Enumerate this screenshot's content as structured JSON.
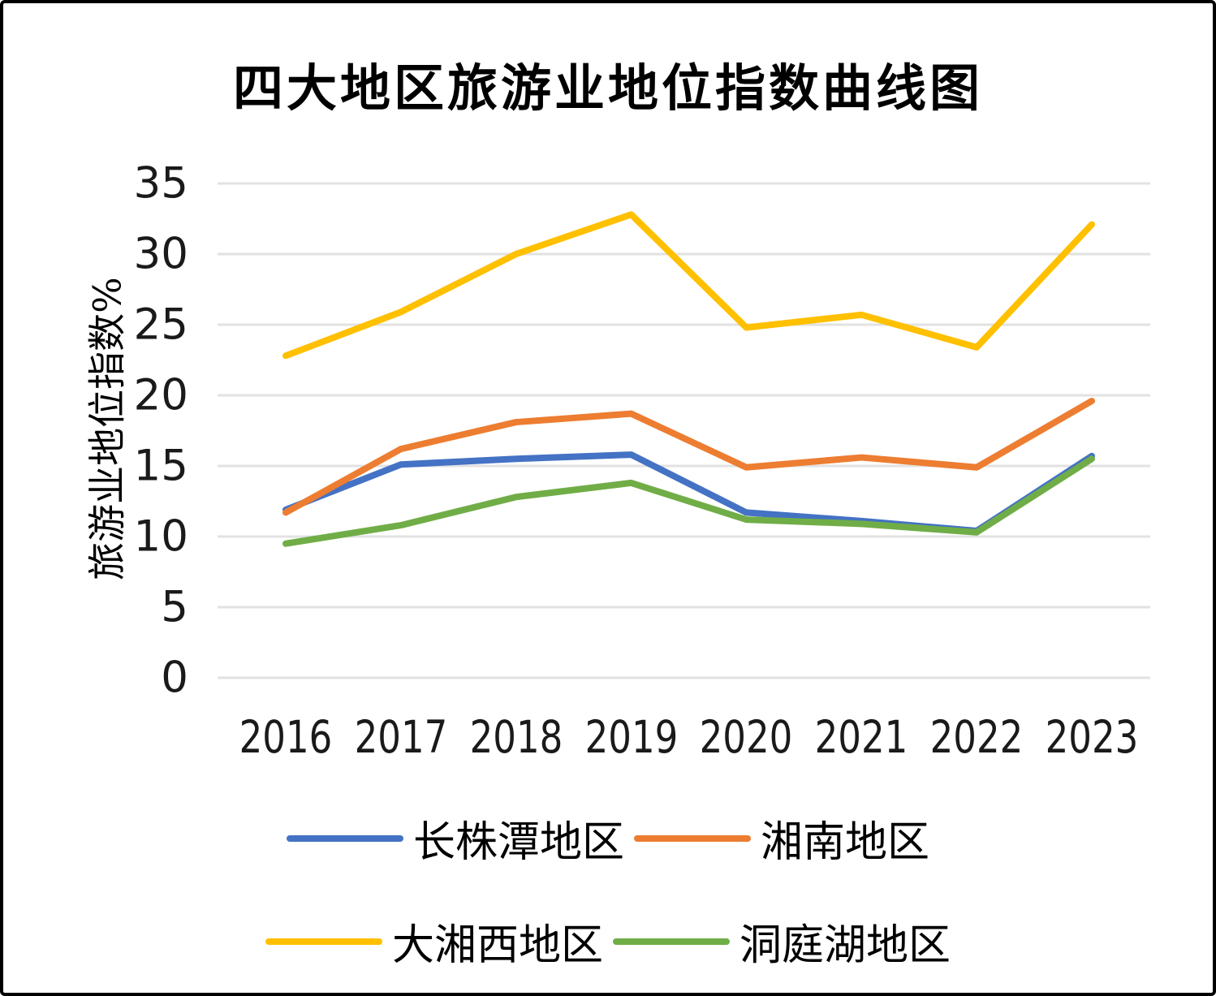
{
  "page": {
    "background": "#ffffff",
    "border_color": "#000000"
  },
  "chart": {
    "title": "四大地区旅游业地位指数曲线图",
    "y_axis_title": "旅游业地位指数%"
  },
  "chart_data": {
    "type": "line",
    "title": "四大地区旅游业地位指数曲线图",
    "xlabel": "",
    "ylabel": "旅游业地位指数%",
    "categories": [
      "2016",
      "2017",
      "2018",
      "2019",
      "2020",
      "2021",
      "2022",
      "2023"
    ],
    "series": [
      {
        "name": "长株潭地区",
        "color": "#4472C4",
        "values": [
          11.9,
          15.1,
          15.5,
          15.8,
          11.7,
          11.1,
          10.4,
          15.7
        ]
      },
      {
        "name": "湘南地区",
        "color": "#ED7D31",
        "values": [
          11.7,
          16.2,
          18.1,
          18.7,
          14.9,
          15.6,
          14.9,
          19.6
        ]
      },
      {
        "name": "大湘西地区",
        "color": "#FFC000",
        "values": [
          22.8,
          25.9,
          30.0,
          32.8,
          24.8,
          25.7,
          23.4,
          32.1
        ]
      },
      {
        "name": "洞庭湖地区",
        "color": "#70AD47",
        "values": [
          9.5,
          10.8,
          12.8,
          13.8,
          11.2,
          10.9,
          10.3,
          15.5
        ]
      }
    ],
    "ylim": [
      0,
      35
    ],
    "yticks": [
      0,
      5,
      10,
      15,
      20,
      25,
      30,
      35
    ],
    "grid": true,
    "gridline_color": "#E2E2E2",
    "legend_position": "bottom",
    "line_width": 8
  }
}
